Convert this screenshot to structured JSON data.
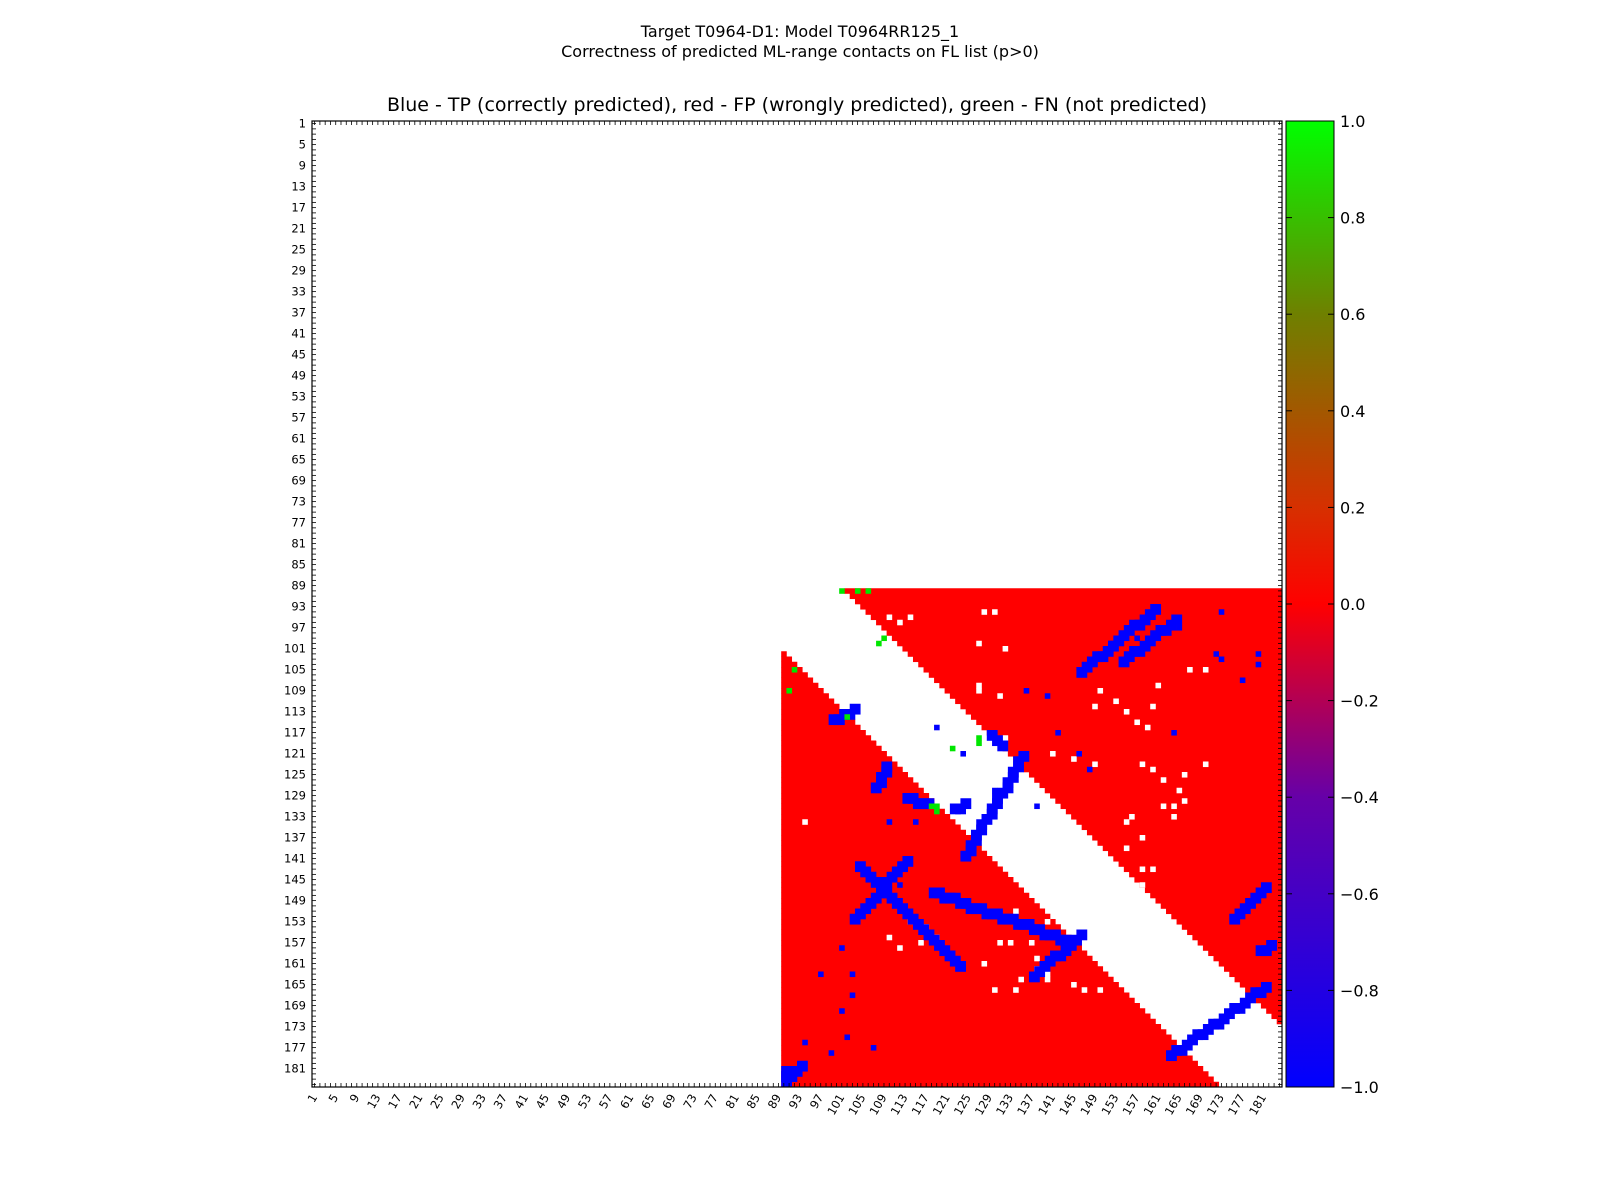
{
  "figure": {
    "title_line1": "Target T0964-D1: Model T0964RR125_1",
    "title_line2": "Correctness of predicted ML-range contacts on FL list (p>0)"
  },
  "chart_data": {
    "type": "heatmap",
    "title": "Blue - TP (correctly predicted), red - FP (wrongly predicted), green - FN (not predicted)",
    "n_residues": 184,
    "x_range": [
      1,
      184
    ],
    "y_range": [
      1,
      184
    ],
    "y_axis_inverted": true,
    "tick_labels": [
      "1",
      "5",
      "9",
      "13",
      "17",
      "21",
      "25",
      "29",
      "33",
      "37",
      "41",
      "45",
      "49",
      "53",
      "57",
      "61",
      "65",
      "69",
      "73",
      "77",
      "81",
      "85",
      "89",
      "93",
      "97",
      "101",
      "105",
      "109",
      "113",
      "117",
      "121",
      "125",
      "129",
      "133",
      "137",
      "141",
      "145",
      "149",
      "153",
      "157",
      "161",
      "165",
      "169",
      "173",
      "177",
      "181"
    ],
    "colorbar": {
      "range": [
        -1.0,
        1.0
      ],
      "ticks": [
        "1.0",
        "0.8",
        "0.6",
        "0.4",
        "0.2",
        "0.0",
        "−0.2",
        "−0.4",
        "−0.6",
        "−0.8",
        "−1.0"
      ],
      "tick_values": [
        1.0,
        0.8,
        0.6,
        0.4,
        0.2,
        0.0,
        -0.2,
        -0.4,
        -0.6,
        -0.8,
        -1.0
      ],
      "colors": {
        "tp": "#0000ff",
        "fp": "#ff0000",
        "fn": "#00e600"
      }
    },
    "value_legend": {
      "TP": -1.0,
      "FP": 0.0,
      "FN": 1.0
    },
    "regions": {
      "domain_start_residue": 90,
      "excluded_band_min_separation": 12
    },
    "tp_segments": [
      [
        [
          90,
          183
        ],
        [
          93,
          180
        ]
      ],
      [
        [
          99,
          114
        ],
        [
          103,
          112
        ]
      ],
      [
        [
          107,
          127
        ],
        [
          109,
          123
        ]
      ],
      [
        [
          113,
          129
        ],
        [
          117,
          130
        ]
      ],
      [
        [
          122,
          131
        ],
        [
          124,
          130
        ]
      ],
      [
        [
          129,
          117
        ],
        [
          131,
          119
        ]
      ],
      [
        [
          113,
          141
        ],
        [
          103,
          152
        ]
      ],
      [
        [
          124,
          140
        ],
        [
          135,
          121
        ]
      ],
      [
        [
          104,
          142
        ],
        [
          123,
          161
        ]
      ],
      [
        [
          118,
          147
        ],
        [
          143,
          156
        ]
      ],
      [
        [
          146,
          105
        ],
        [
          160,
          93
        ]
      ],
      [
        [
          154,
          103
        ],
        [
          164,
          95
        ]
      ],
      [
        [
          137,
          163
        ],
        [
          146,
          155
        ]
      ],
      [
        [
          163,
          178
        ],
        [
          181,
          165
        ]
      ],
      [
        [
          180,
          158
        ],
        [
          182,
          157
        ]
      ],
      [
        [
          181,
          146
        ],
        [
          175,
          152
        ]
      ],
      [
        [
          90,
          182
        ],
        [
          90,
          181
        ]
      ]
    ],
    "tp_points": [
      [
        101,
        158
      ],
      [
        103,
        167
      ],
      [
        101,
        170
      ],
      [
        97,
        163
      ],
      [
        102,
        175
      ],
      [
        107,
        177
      ],
      [
        99,
        178
      ],
      [
        94,
        176
      ],
      [
        110,
        134
      ],
      [
        115,
        134
      ],
      [
        112,
        146
      ],
      [
        112,
        149
      ],
      [
        103,
        163
      ],
      [
        130,
        128
      ],
      [
        119,
        116
      ],
      [
        124,
        121
      ],
      [
        138,
        131
      ],
      [
        146,
        121
      ],
      [
        148,
        124
      ],
      [
        142,
        117
      ],
      [
        140,
        110
      ],
      [
        136,
        109
      ],
      [
        152,
        100
      ],
      [
        157,
        99
      ],
      [
        155,
        98
      ],
      [
        161,
        98
      ],
      [
        165,
        97
      ],
      [
        173,
        94
      ],
      [
        177,
        107
      ],
      [
        180,
        104
      ],
      [
        173,
        103
      ],
      [
        180,
        102
      ],
      [
        172,
        102
      ],
      [
        164,
        117
      ]
    ],
    "fn_points": [
      [
        92,
        105
      ],
      [
        91,
        109
      ],
      [
        101,
        90
      ],
      [
        106,
        90
      ],
      [
        104,
        90
      ],
      [
        119,
        131
      ],
      [
        118,
        131
      ],
      [
        119,
        132
      ],
      [
        127,
        118
      ],
      [
        127,
        119
      ],
      [
        122,
        120
      ],
      [
        109,
        99
      ],
      [
        108,
        100
      ],
      [
        102,
        114
      ]
    ],
    "white_points": [
      [
        94,
        134
      ],
      [
        110,
        119
      ],
      [
        120,
        122
      ],
      [
        108,
        118
      ],
      [
        127,
        108
      ],
      [
        127,
        109
      ],
      [
        132,
        101
      ],
      [
        145,
        122
      ],
      [
        149,
        123
      ],
      [
        158,
        123
      ],
      [
        160,
        124
      ],
      [
        162,
        126
      ],
      [
        166,
        125
      ],
      [
        165,
        128
      ],
      [
        166,
        130
      ],
      [
        162,
        131
      ],
      [
        155,
        113
      ],
      [
        157,
        115
      ],
      [
        159,
        116
      ],
      [
        160,
        112
      ],
      [
        161,
        108
      ],
      [
        153,
        111
      ],
      [
        149,
        112
      ],
      [
        150,
        109
      ],
      [
        114,
        153
      ],
      [
        117,
        154
      ],
      [
        119,
        156
      ],
      [
        110,
        156
      ],
      [
        112,
        158
      ],
      [
        116,
        157
      ],
      [
        131,
        157
      ],
      [
        133,
        157
      ],
      [
        137,
        157
      ],
      [
        138,
        160
      ],
      [
        141,
        160
      ],
      [
        145,
        165
      ],
      [
        150,
        166
      ],
      [
        134,
        151
      ],
      [
        140,
        153
      ],
      [
        128,
        161
      ],
      [
        130,
        166
      ],
      [
        134,
        166
      ],
      [
        135,
        164
      ],
      [
        138,
        162
      ],
      [
        140,
        163
      ],
      [
        140,
        164
      ],
      [
        147,
        166
      ],
      [
        141,
        121
      ],
      [
        132,
        118
      ],
      [
        131,
        110
      ],
      [
        127,
        100
      ],
      [
        130,
        94
      ],
      [
        128,
        94
      ],
      [
        158,
        143
      ],
      [
        158,
        146
      ],
      [
        160,
        143
      ],
      [
        158,
        137
      ],
      [
        156,
        133
      ],
      [
        155,
        139
      ],
      [
        155,
        134
      ],
      [
        164,
        133
      ],
      [
        164,
        131
      ],
      [
        170,
        123
      ],
      [
        167,
        105
      ],
      [
        170,
        105
      ],
      [
        110,
        95
      ],
      [
        114,
        95
      ],
      [
        112,
        96
      ]
    ]
  }
}
